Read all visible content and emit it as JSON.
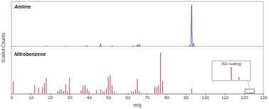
{
  "chart_data": [
    {
      "type": "line",
      "title": "Aniline",
      "ylabel": "Scaled Counts",
      "color": "#4a5cc4",
      "x": [
        0,
        17.6,
        18,
        18.4,
        27.6,
        28,
        28.4,
        38.6,
        39,
        39.4,
        45.6,
        46,
        46.4,
        51.6,
        52,
        52.4,
        62.6,
        63,
        63.4,
        64.6,
        65,
        65.4,
        65.6,
        66,
        66.4,
        91.6,
        92,
        92.4,
        92.6,
        93,
        93.4,
        93.6,
        94,
        94.4,
        130
      ],
      "values": [
        0,
        0,
        0.02,
        0,
        0,
        0.015,
        0,
        0,
        0.03,
        0,
        0,
        0.07,
        0,
        0,
        0.025,
        0,
        0,
        0.03,
        0,
        0,
        0.05,
        0,
        0,
        0.06,
        0,
        0,
        0.04,
        0,
        0,
        1.0,
        0,
        0,
        0.08,
        0,
        0
      ],
      "xlim": [
        0,
        130
      ],
      "ylim": [
        0,
        1
      ],
      "tick_labels": false
    },
    {
      "type": "bar",
      "title": "Nitrobenzene",
      "xlabel": "m/q",
      "color": "#d93a6b",
      "annotation": "(50x scaling)",
      "x": [
        1,
        12,
        14,
        16,
        17,
        18,
        24,
        25,
        26,
        27,
        28,
        29,
        30,
        36,
        37,
        38,
        39,
        40,
        44,
        46,
        47,
        48,
        49,
        50,
        51,
        52,
        53,
        62,
        63,
        64,
        65,
        66,
        74,
        75,
        76,
        77,
        78,
        93,
        123,
        124
      ],
      "values": [
        0.3,
        0.2,
        0.15,
        0.15,
        0.25,
        0.38,
        0.05,
        0.1,
        0.1,
        0.05,
        0.22,
        0.05,
        0.38,
        0.08,
        0.18,
        0.2,
        0.12,
        0.05,
        0.08,
        0.1,
        0.05,
        0.05,
        0.12,
        0.4,
        0.45,
        0.2,
        0.05,
        0.05,
        0.05,
        0.1,
        0.35,
        0.05,
        0.15,
        0.15,
        0.2,
        1.0,
        0.3,
        0.12,
        0.018,
        0.004
      ],
      "xlim": [
        0,
        130
      ],
      "ylim": [
        0,
        1
      ],
      "inset_xlim": [
        120.5,
        125.5
      ],
      "inset_ylim": [
        0,
        0.02
      ],
      "xticks": [
        0,
        10,
        20,
        30,
        40,
        50,
        60,
        70,
        80,
        90,
        100,
        110,
        120,
        130
      ],
      "tick_labels": "x"
    }
  ]
}
